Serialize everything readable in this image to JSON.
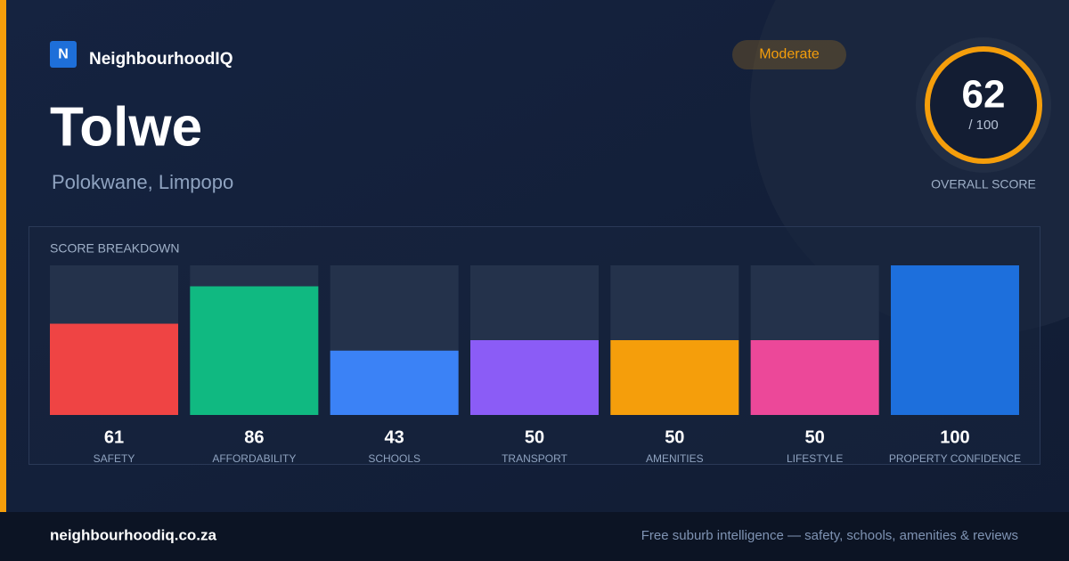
{
  "brand": "NeighbourhoodIQ",
  "logo": "N",
  "title": "Tolwe",
  "location": "Polokwane, Limpopo",
  "rating": "Moderate",
  "overall": {
    "score": 62,
    "out_of": "/ 100",
    "label": "OVERALL SCORE"
  },
  "chart_data": {
    "type": "bar",
    "title": "SCORE BREAKDOWN",
    "categories": [
      "SAFETY",
      "AFFORDABILITY",
      "SCHOOLS",
      "TRANSPORT",
      "AMENITIES",
      "LIFESTYLE",
      "PROPERTY CONFIDENCE"
    ],
    "values": [
      61,
      86,
      43,
      50,
      50,
      50,
      100
    ],
    "colors": [
      "#ef4444",
      "#10b981",
      "#3b82f6",
      "#8b5cf6",
      "#f59e0b",
      "#ec4899",
      "#1d6fdc"
    ],
    "ylim": [
      0,
      100
    ]
  },
  "footer": {
    "url": "neighbourhoodiq.co.za",
    "tagline": "Free suburb intelligence — safety, schools, amenities & reviews"
  }
}
